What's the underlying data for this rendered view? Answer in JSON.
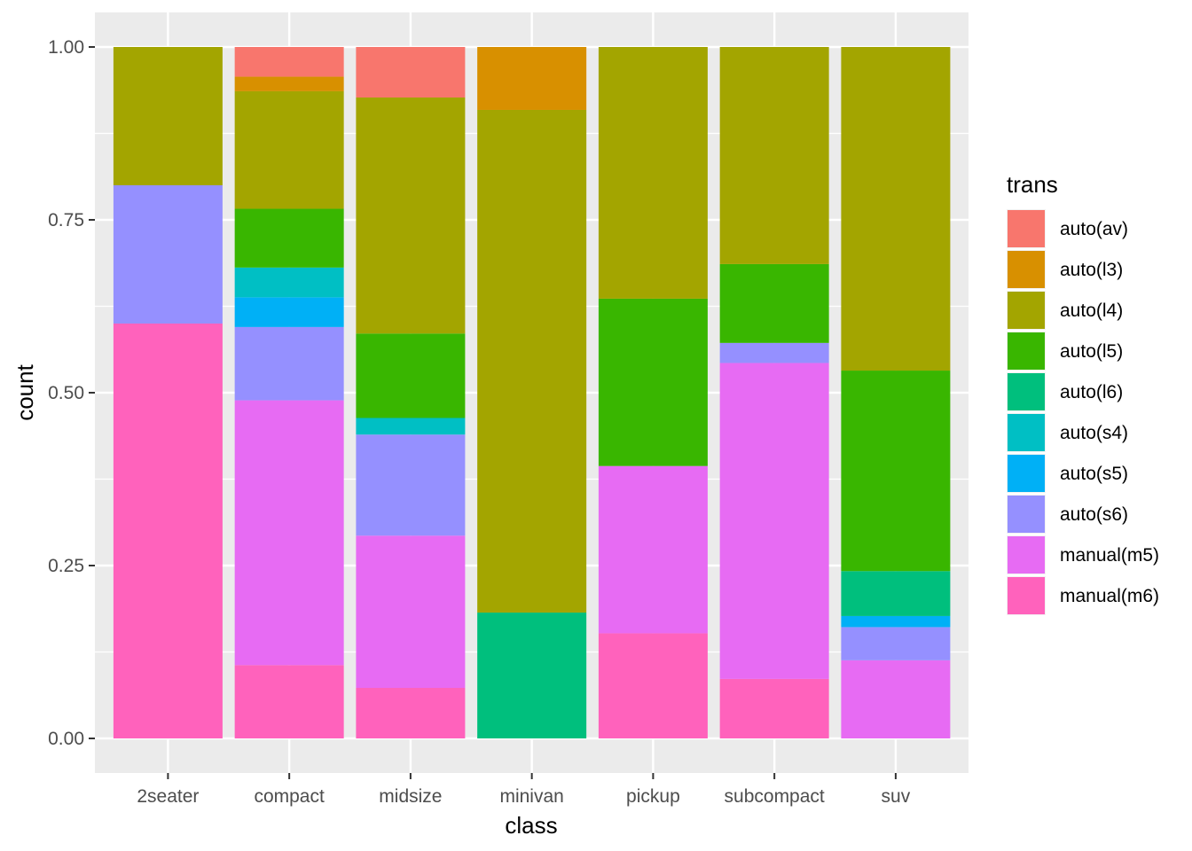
{
  "chart_data": {
    "type": "bar",
    "stacked": "fill",
    "xlabel": "class",
    "ylabel": "count",
    "ylim": [
      0,
      1
    ],
    "y_ticks": [
      "0.00",
      "0.25",
      "0.50",
      "0.75",
      "1.00"
    ],
    "grid": true,
    "legend_position": "right",
    "legend_title": "trans",
    "categories": [
      "2seater",
      "compact",
      "midsize",
      "minivan",
      "pickup",
      "subcompact",
      "suv"
    ],
    "series": [
      {
        "name": "auto(av)",
        "color": "#F8766D",
        "values": [
          0,
          0.043,
          0.073,
          0,
          0,
          0,
          0
        ]
      },
      {
        "name": "auto(l3)",
        "color": "#D89000",
        "values": [
          0,
          0.021,
          0,
          0.091,
          0,
          0,
          0
        ]
      },
      {
        "name": "auto(l4)",
        "color": "#A3A500",
        "values": [
          0.2,
          0.17,
          0.341,
          0.727,
          0.364,
          0.314,
          0.468
        ]
      },
      {
        "name": "auto(l5)",
        "color": "#39B600",
        "values": [
          0,
          0.085,
          0.122,
          0,
          0.242,
          0.114,
          0.29
        ]
      },
      {
        "name": "auto(l6)",
        "color": "#00BF7D",
        "values": [
          0,
          0,
          0,
          0.182,
          0,
          0,
          0.065
        ]
      },
      {
        "name": "auto(s4)",
        "color": "#00BFC4",
        "values": [
          0,
          0.043,
          0.024,
          0,
          0,
          0,
          0
        ]
      },
      {
        "name": "auto(s5)",
        "color": "#00B0F6",
        "values": [
          0,
          0.043,
          0,
          0,
          0,
          0,
          0.016
        ]
      },
      {
        "name": "auto(s6)",
        "color": "#9590FF",
        "values": [
          0.2,
          0.106,
          0.146,
          0,
          0,
          0.029,
          0.048
        ]
      },
      {
        "name": "manual(m5)",
        "color": "#E76BF3",
        "values": [
          0,
          0.383,
          0.22,
          0,
          0.242,
          0.457,
          0.113
        ]
      },
      {
        "name": "manual(m6)",
        "color": "#FF62BC",
        "values": [
          0.6,
          0.106,
          0.073,
          0,
          0.152,
          0.086,
          0
        ]
      }
    ]
  }
}
